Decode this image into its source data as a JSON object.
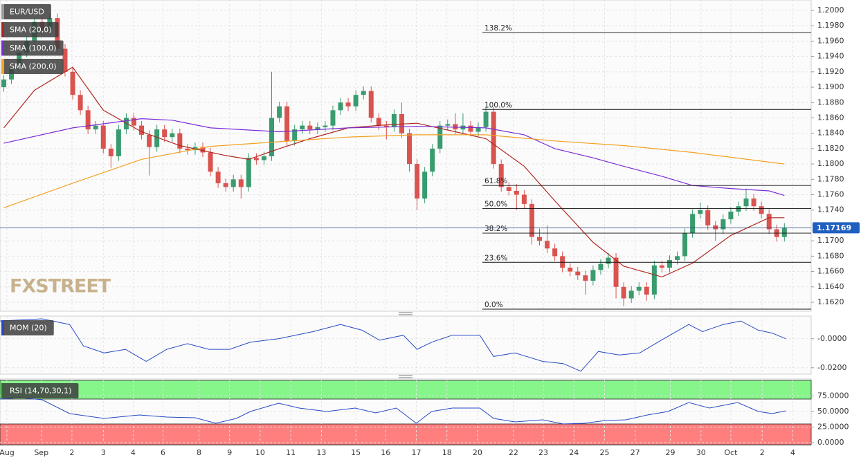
{
  "chart_data": [
    {
      "type": "candlestick",
      "symbol": "EUR/USD",
      "brand": "FXSTREET",
      "xlim": [
        -0.5,
        105.5
      ],
      "ylim": [
        1.16083,
        1.20135
      ],
      "yticks": [
        {
          "value": 1.2,
          "label": "1.2000"
        },
        {
          "value": 1.198,
          "label": "1.1980"
        },
        {
          "value": 1.196,
          "label": "1.1960"
        },
        {
          "value": 1.194,
          "label": "1.1940"
        },
        {
          "value": 1.192,
          "label": "1.1920"
        },
        {
          "value": 1.19,
          "label": "1.1900"
        },
        {
          "value": 1.188,
          "label": "1.1880"
        },
        {
          "value": 1.186,
          "label": "1.1860"
        },
        {
          "value": 1.184,
          "label": "1.1840"
        },
        {
          "value": 1.182,
          "label": "1.1820"
        },
        {
          "value": 1.18,
          "label": "1.1800"
        },
        {
          "value": 1.178,
          "label": "1.1780"
        },
        {
          "value": 1.176,
          "label": "1.1760"
        },
        {
          "value": 1.174,
          "label": "1.1740"
        },
        {
          "value": 1.17,
          "label": "1.1700"
        },
        {
          "value": 1.168,
          "label": "1.1680"
        },
        {
          "value": 1.166,
          "label": "1.1660"
        },
        {
          "value": 1.164,
          "label": "1.1640"
        },
        {
          "value": 1.162,
          "label": "1.1620"
        }
      ],
      "grid": true,
      "up_color": "#3a9b6f",
      "down_color": "#d9534f",
      "open": [
        1.19,
        1.191,
        1.1925,
        1.1945,
        1.196,
        1.1985,
        1.1975,
        1.199,
        1.195,
        1.192,
        1.189,
        1.187,
        1.1845,
        1.185,
        1.182,
        1.181,
        1.1845,
        1.186,
        1.185,
        1.1838,
        1.1822,
        1.1845,
        1.1835,
        1.184,
        1.182,
        1.1818,
        1.1822,
        1.1815,
        1.179,
        1.1775,
        1.177,
        1.178,
        1.177,
        1.1808,
        1.1805,
        1.181,
        1.186,
        1.1875,
        1.183,
        1.1845,
        1.185,
        1.1845,
        1.1848,
        1.185,
        1.187,
        1.188,
        1.1875,
        1.189,
        1.1895,
        1.186,
        1.185,
        1.1848,
        1.1865,
        1.184,
        1.18,
        1.1755,
        1.179,
        1.182,
        1.185,
        1.1852,
        1.1845,
        1.185,
        1.1842,
        1.1848,
        1.1868,
        1.18,
        1.177,
        1.1765,
        1.176,
        1.1748,
        1.1705,
        1.17,
        1.169,
        1.168,
        1.1665,
        1.166,
        1.1655,
        1.1648,
        1.1662,
        1.167,
        1.1678,
        1.164,
        1.1625,
        1.1635,
        1.164,
        1.163,
        1.1668,
        1.1665,
        1.1675,
        1.168,
        1.171,
        1.1735,
        1.174,
        1.172,
        1.1715,
        1.1728,
        1.1738,
        1.1745,
        1.1755,
        1.1745,
        1.1735,
        1.1715,
        1.1705
      ],
      "high": [
        1.1916,
        1.1931,
        1.1951,
        1.1966,
        1.1991,
        1.1991,
        1.1996,
        1.1996,
        1.1956,
        1.1926,
        1.1896,
        1.1876,
        1.1856,
        1.1856,
        1.1826,
        1.1851,
        1.1866,
        1.1866,
        1.1856,
        1.1844,
        1.1851,
        1.1851,
        1.1846,
        1.1846,
        1.1826,
        1.1828,
        1.1828,
        1.1821,
        1.1796,
        1.1781,
        1.1786,
        1.1786,
        1.1814,
        1.1814,
        1.1816,
        1.192,
        1.1881,
        1.1881,
        1.1851,
        1.1856,
        1.1856,
        1.1854,
        1.1856,
        1.1876,
        1.1886,
        1.1886,
        1.1896,
        1.1901,
        1.1901,
        1.1866,
        1.1856,
        1.1871,
        1.188,
        1.1846,
        1.1806,
        1.1796,
        1.1826,
        1.1856,
        1.1858,
        1.1866,
        1.1866,
        1.1856,
        1.1854,
        1.1874,
        1.1874,
        1.1806,
        1.1776,
        1.1774,
        1.1766,
        1.1754,
        1.1716,
        1.172,
        1.1696,
        1.1686,
        1.1671,
        1.1666,
        1.1661,
        1.1668,
        1.1676,
        1.1684,
        1.1684,
        1.1646,
        1.1641,
        1.1646,
        1.1646,
        1.1674,
        1.1674,
        1.1681,
        1.1686,
        1.1716,
        1.1741,
        1.175,
        1.1746,
        1.1726,
        1.1734,
        1.1744,
        1.1751,
        1.1768,
        1.1761,
        1.1751,
        1.1741,
        1.1721,
        1.1723
      ],
      "low": [
        1.1894,
        1.1904,
        1.1919,
        1.1939,
        1.1954,
        1.1969,
        1.1969,
        1.1944,
        1.1914,
        1.1884,
        1.1864,
        1.1839,
        1.1839,
        1.1814,
        1.1795,
        1.1804,
        1.1839,
        1.1844,
        1.1832,
        1.1785,
        1.1816,
        1.1829,
        1.1829,
        1.1814,
        1.1812,
        1.1812,
        1.1809,
        1.1784,
        1.1769,
        1.1764,
        1.1764,
        1.1755,
        1.1764,
        1.1799,
        1.1799,
        1.1804,
        1.1854,
        1.1824,
        1.1824,
        1.1839,
        1.1839,
        1.1839,
        1.1842,
        1.1844,
        1.1864,
        1.1869,
        1.1869,
        1.1884,
        1.1854,
        1.1844,
        1.1832,
        1.1842,
        1.1834,
        1.179,
        1.174,
        1.1749,
        1.1784,
        1.1814,
        1.1844,
        1.1839,
        1.1839,
        1.1836,
        1.1836,
        1.1842,
        1.1794,
        1.1764,
        1.1759,
        1.174,
        1.1742,
        1.1695,
        1.1694,
        1.1684,
        1.1674,
        1.1659,
        1.1654,
        1.1649,
        1.163,
        1.1642,
        1.1656,
        1.1664,
        1.1625,
        1.1615,
        1.1619,
        1.1629,
        1.1622,
        1.1624,
        1.1659,
        1.1659,
        1.1669,
        1.1674,
        1.1704,
        1.1729,
        1.1714,
        1.17,
        1.1709,
        1.1722,
        1.1732,
        1.1739,
        1.1739,
        1.1729,
        1.1709,
        1.1699,
        1.1699
      ],
      "close": [
        1.191,
        1.1925,
        1.1945,
        1.196,
        1.1985,
        1.1975,
        1.199,
        1.195,
        1.192,
        1.189,
        1.187,
        1.1845,
        1.185,
        1.182,
        1.181,
        1.1845,
        1.186,
        1.185,
        1.1838,
        1.1822,
        1.1845,
        1.1835,
        1.184,
        1.182,
        1.1818,
        1.1822,
        1.1815,
        1.179,
        1.1775,
        1.177,
        1.178,
        1.177,
        1.1808,
        1.1805,
        1.181,
        1.186,
        1.1875,
        1.183,
        1.1845,
        1.185,
        1.1845,
        1.1848,
        1.185,
        1.187,
        1.188,
        1.1875,
        1.189,
        1.1895,
        1.186,
        1.185,
        1.1848,
        1.1865,
        1.184,
        1.18,
        1.1755,
        1.179,
        1.182,
        1.185,
        1.1852,
        1.1845,
        1.185,
        1.1842,
        1.1848,
        1.1868,
        1.18,
        1.177,
        1.1765,
        1.176,
        1.1748,
        1.1705,
        1.17,
        1.169,
        1.168,
        1.1665,
        1.166,
        1.1655,
        1.1648,
        1.1662,
        1.167,
        1.1678,
        1.164,
        1.1625,
        1.1635,
        1.164,
        1.163,
        1.1668,
        1.1665,
        1.1675,
        1.168,
        1.171,
        1.1735,
        1.174,
        1.172,
        1.1715,
        1.1728,
        1.1738,
        1.1745,
        1.1755,
        1.1745,
        1.1735,
        1.1715,
        1.1705,
        1.1717
      ],
      "series": [
        {
          "name": "SMA (20,0)",
          "color": "#b0261f",
          "x": [
            0,
            4,
            9,
            13,
            18,
            23,
            29,
            32,
            36,
            40,
            45,
            50,
            54,
            59,
            63,
            68,
            72,
            77,
            81,
            86,
            90,
            95,
            100,
            102
          ],
          "values": [
            1.1847,
            1.1896,
            1.1926,
            1.187,
            1.1842,
            1.1824,
            1.1811,
            1.1806,
            1.182,
            1.1833,
            1.1847,
            1.1851,
            1.1853,
            1.1842,
            1.1833,
            1.1797,
            1.1752,
            1.1698,
            1.1667,
            1.1653,
            1.1671,
            1.1707,
            1.173,
            1.173
          ]
        },
        {
          "name": "SMA (100,0)",
          "color": "#7b2cd6",
          "x": [
            0,
            9,
            18,
            22,
            27,
            36,
            45,
            54,
            63,
            68,
            72,
            77,
            81,
            86,
            90,
            95,
            100,
            102
          ],
          "values": [
            1.1827,
            1.1847,
            1.1859,
            1.1857,
            1.1847,
            1.1842,
            1.1847,
            1.1849,
            1.1847,
            1.1838,
            1.182,
            1.1808,
            1.1797,
            1.1784,
            1.1772,
            1.1768,
            1.1765,
            1.1759
          ]
        },
        {
          "name": "SMA (200,0)",
          "color": "#f4a020",
          "x": [
            0,
            9,
            18,
            27,
            36,
            45,
            54,
            63,
            72,
            81,
            90,
            102
          ],
          "values": [
            1.1743,
            1.1775,
            1.1806,
            1.1823,
            1.1829,
            1.1835,
            1.1838,
            1.1838,
            1.183,
            1.1824,
            1.1815,
            1.18
          ]
        }
      ],
      "fib_levels": [
        {
          "label": "138.2%",
          "price": 1.1971
        },
        {
          "label": "100.0%",
          "price": 1.1871
        },
        {
          "label": "61.8%",
          "price": 1.1772
        },
        {
          "label": "50.0%",
          "price": 1.1742
        },
        {
          "label": "38.2%",
          "price": 1.171
        },
        {
          "label": "23.6%",
          "price": 1.1672
        },
        {
          "label": "0.0%",
          "price": 1.1611
        }
      ],
      "last_price": 1.17169
    },
    {
      "type": "line",
      "title": "MOM (20)",
      "xlim": [
        -0.5,
        105.5
      ],
      "ylim": [
        -0.0244,
        0.0156
      ],
      "yticks": [
        {
          "value": 0,
          "label": "-0.0000"
        },
        {
          "value": -0.02,
          "label": "-0.0200"
        }
      ],
      "grid": true,
      "series": [
        {
          "color": "#2648c4",
          "x": [
            -0.5,
            5,
            8.6,
            10.4,
            13.1,
            15.9,
            18.6,
            21.3,
            24,
            26.8,
            29.5,
            32.2,
            35.9,
            40.4,
            44,
            46.8,
            49.1,
            52.2,
            54,
            55.9,
            58.6,
            62.2,
            64,
            66.8,
            70.4,
            73.1,
            75.4,
            77.7,
            80.4,
            83.1,
            85.9,
            89.5,
            91.3,
            94,
            96.3,
            98.6,
            100.4,
            102.2
          ],
          "values": [
            0.0122,
            0.0137,
            0.0098,
            -0.0049,
            -0.0098,
            -0.0073,
            -0.0156,
            -0.0073,
            -0.0034,
            -0.0073,
            -0.0073,
            -0.0024,
            0,
            0.0049,
            0.0098,
            0.0059,
            -0.001,
            0.0024,
            -0.0073,
            -0.0024,
            0.0024,
            0.0024,
            -0.0122,
            -0.0098,
            -0.0156,
            -0.0171,
            -0.0224,
            -0.0088,
            -0.0112,
            -0.0098,
            -0.001,
            0.0098,
            0.0049,
            0.0098,
            0.0122,
            0.0059,
            0.0039,
            0
          ]
        }
      ]
    },
    {
      "type": "line",
      "title": "RSI (14,70,30,1)",
      "xlim": [
        -0.5,
        105.5
      ],
      "ylim": [
        0,
        100
      ],
      "overbought": 70,
      "oversold": 30,
      "overbought_color": "#86f58a",
      "oversold_color": "#ff7f7f",
      "yticks": [
        {
          "value": 75,
          "label": "75.0000"
        },
        {
          "value": 50,
          "label": "50.0000"
        },
        {
          "value": 25,
          "label": "25.0000"
        },
        {
          "value": 0,
          "label": "0.0000"
        }
      ],
      "grid": true,
      "xticks": [
        {
          "value": 0.4,
          "label": "Aug"
        },
        {
          "value": 4.9,
          "label": "Sep"
        },
        {
          "value": 8.9,
          "label": "2"
        },
        {
          "value": 13,
          "label": "3"
        },
        {
          "value": 16.9,
          "label": "4"
        },
        {
          "value": 20.8,
          "label": "6"
        },
        {
          "value": 25.5,
          "label": "8"
        },
        {
          "value": 29.5,
          "label": "9"
        },
        {
          "value": 33.5,
          "label": "10"
        },
        {
          "value": 37.5,
          "label": "11"
        },
        {
          "value": 41.5,
          "label": "13"
        },
        {
          "value": 46,
          "label": "15"
        },
        {
          "value": 49.9,
          "label": "16"
        },
        {
          "value": 53.9,
          "label": "17"
        },
        {
          "value": 57.9,
          "label": "18"
        },
        {
          "value": 61.9,
          "label": "20"
        },
        {
          "value": 66.6,
          "label": "22"
        },
        {
          "value": 70.5,
          "label": "23"
        },
        {
          "value": 74.5,
          "label": "24"
        },
        {
          "value": 78.5,
          "label": "25"
        },
        {
          "value": 82.5,
          "label": "27"
        },
        {
          "value": 87.1,
          "label": "29"
        },
        {
          "value": 91.1,
          "label": "30"
        },
        {
          "value": 95,
          "label": "Oct"
        },
        {
          "value": 99.1,
          "label": "2"
        },
        {
          "value": 103.1,
          "label": "4"
        }
      ],
      "series": [
        {
          "color": "#2648c4",
          "x": [
            -0.5,
            2.2,
            5,
            8.6,
            13.1,
            17.7,
            21.3,
            25,
            27.7,
            30.4,
            32.2,
            35.9,
            38.6,
            42.2,
            45.9,
            48.6,
            51.3,
            53.9,
            55.9,
            58.6,
            62.2,
            64,
            66.8,
            70.4,
            73.1,
            75.9,
            78.6,
            81.3,
            84.1,
            86.8,
            89.5,
            92.2,
            95.9,
            98.6,
            100.4,
            102.2
          ],
          "values": [
            70,
            72.2,
            68.9,
            46.7,
            38.9,
            44.4,
            41.1,
            40,
            31.1,
            38.9,
            50,
            63.3,
            55.6,
            50,
            55.6,
            47.8,
            55.6,
            31.1,
            50,
            55.6,
            55.6,
            38.9,
            33.3,
            36.7,
            30,
            31.1,
            35.6,
            36.7,
            44.4,
            50,
            64.4,
            55.6,
            64.4,
            50,
            46.7,
            51.1
          ]
        }
      ]
    }
  ]
}
